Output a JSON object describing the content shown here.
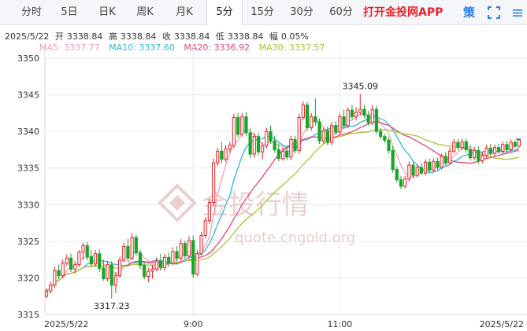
{
  "tabs": [
    {
      "label": "分时",
      "active": false
    },
    {
      "label": "5日",
      "active": false
    },
    {
      "label": "日K",
      "active": false
    },
    {
      "label": "周K",
      "active": false
    },
    {
      "label": "月K",
      "active": false
    },
    {
      "label": "5分",
      "active": true
    },
    {
      "label": "15分",
      "active": false
    },
    {
      "label": "30分",
      "active": false
    },
    {
      "label": "60分",
      "active": false
    }
  ],
  "app_promo": "打开金投网APP",
  "strategy_label": "策",
  "quote": {
    "date": "2025/5/22",
    "open_label": "开",
    "open": "3338.84",
    "high_label": "高",
    "high": "3338.84",
    "close_label": "收",
    "close": "3338.84",
    "low_label": "低",
    "low": "3338.84",
    "change_label": "幅",
    "change": "0.05%"
  },
  "ma": [
    {
      "label": "MA5: 3337.77",
      "color": "#f4a0b4"
    },
    {
      "label": "MA10: 3337.60",
      "color": "#33b7d6"
    },
    {
      "label": "MA20: 3336.92",
      "color": "#e8457c"
    },
    {
      "label": "MA30: 3337.57",
      "color": "#a8c43a"
    }
  ],
  "watermark": {
    "cn": "金投行情",
    "url": "quote.cngold.org"
  },
  "colors": {
    "up": "#e8222a",
    "down": "#19a526",
    "grid": "#e6e9ee"
  },
  "chart_data": {
    "type": "candlestick",
    "ylim": [
      3315,
      3350
    ],
    "y_ticks": [
      3315,
      3320,
      3325,
      3330,
      3335,
      3340,
      3345,
      3350
    ],
    "x_tick_labels": [
      {
        "label": "2025/5/22",
        "index": 0
      },
      {
        "label": "9:00",
        "index": 36
      },
      {
        "label": "11:00",
        "index": 72
      },
      {
        "label": "2025/5/22",
        "index": 116
      }
    ],
    "annotations": [
      {
        "label": "3345.09",
        "index": 77,
        "value": 3345.09
      },
      {
        "label": "3317.23",
        "index": 16,
        "value": 3317.23
      }
    ],
    "last_price": 3338.84,
    "candles": [
      [
        3317.5,
        3318.6,
        3317.2,
        3318.2
      ],
      [
        3318.2,
        3319.5,
        3317.8,
        3319.0
      ],
      [
        3319.0,
        3321.5,
        3318.6,
        3321.0
      ],
      [
        3321.0,
        3321.8,
        3319.8,
        3320.3
      ],
      [
        3320.3,
        3322.5,
        3320.0,
        3322.0
      ],
      [
        3322.0,
        3323.2,
        3321.6,
        3322.7
      ],
      [
        3322.7,
        3323.3,
        3320.8,
        3321.2
      ],
      [
        3321.2,
        3322.3,
        3320.6,
        3321.8
      ],
      [
        3321.8,
        3323.8,
        3321.5,
        3323.5
      ],
      [
        3323.5,
        3324.8,
        3322.5,
        3324.4
      ],
      [
        3324.4,
        3324.9,
        3322.4,
        3322.9
      ],
      [
        3322.9,
        3323.8,
        3321.5,
        3321.9
      ],
      [
        3321.9,
        3323.8,
        3321.5,
        3323.3
      ],
      [
        3323.3,
        3323.9,
        3320.8,
        3321.3
      ],
      [
        3321.3,
        3322.5,
        3319.6,
        3319.9
      ],
      [
        3319.9,
        3322.3,
        3319.5,
        3321.8
      ],
      [
        3321.8,
        3322.3,
        3317.2,
        3319.0
      ],
      [
        3319.0,
        3320.8,
        3317.9,
        3320.3
      ],
      [
        3320.3,
        3322.9,
        3320.0,
        3322.4
      ],
      [
        3322.4,
        3324.8,
        3322.1,
        3324.3
      ],
      [
        3324.3,
        3325.3,
        3322.2,
        3322.7
      ],
      [
        3322.7,
        3326.1,
        3322.4,
        3325.5
      ],
      [
        3325.5,
        3325.9,
        3323.0,
        3323.4
      ],
      [
        3323.4,
        3323.8,
        3321.2,
        3321.7
      ],
      [
        3321.7,
        3322.1,
        3319.8,
        3320.2
      ],
      [
        3320.2,
        3321.4,
        3319.4,
        3320.9
      ],
      [
        3320.9,
        3321.8,
        3319.9,
        3321.2
      ],
      [
        3321.2,
        3322.8,
        3320.9,
        3322.3
      ],
      [
        3322.3,
        3323.3,
        3321.0,
        3321.4
      ],
      [
        3321.4,
        3323.3,
        3321.0,
        3322.8
      ],
      [
        3322.8,
        3323.5,
        3321.5,
        3322.0
      ],
      [
        3322.0,
        3324.2,
        3321.7,
        3323.6
      ],
      [
        3323.6,
        3324.3,
        3322.2,
        3322.7
      ],
      [
        3322.7,
        3325.3,
        3322.3,
        3324.7
      ],
      [
        3324.7,
        3325.1,
        3322.6,
        3323.0
      ],
      [
        3323.0,
        3325.7,
        3322.6,
        3325.1
      ],
      [
        3325.1,
        3325.8,
        3320.0,
        3320.5
      ],
      [
        3320.5,
        3323.8,
        3320.2,
        3323.3
      ],
      [
        3323.3,
        3326.3,
        3323.0,
        3325.8
      ],
      [
        3325.8,
        3328.3,
        3325.4,
        3327.8
      ],
      [
        3327.8,
        3330.8,
        3327.4,
        3330.3
      ],
      [
        3330.3,
        3336.3,
        3329.8,
        3335.7
      ],
      [
        3335.7,
        3337.8,
        3335.3,
        3337.3
      ],
      [
        3337.3,
        3338.5,
        3335.6,
        3336.2
      ],
      [
        3336.2,
        3338.1,
        3335.8,
        3337.6
      ],
      [
        3337.6,
        3338.6,
        3337.1,
        3338.1
      ],
      [
        3338.1,
        3342.4,
        3337.7,
        3341.9
      ],
      [
        3341.9,
        3342.5,
        3339.2,
        3339.6
      ],
      [
        3339.6,
        3342.5,
        3339.3,
        3342.0
      ],
      [
        3342.0,
        3342.6,
        3339.4,
        3339.8
      ],
      [
        3339.8,
        3340.5,
        3336.4,
        3336.9
      ],
      [
        3336.9,
        3339.8,
        3336.4,
        3339.3
      ],
      [
        3339.3,
        3339.8,
        3336.8,
        3337.2
      ],
      [
        3337.2,
        3338.5,
        3336.2,
        3338.0
      ],
      [
        3338.0,
        3340.5,
        3337.7,
        3340.0
      ],
      [
        3340.0,
        3340.8,
        3338.3,
        3338.7
      ],
      [
        3338.7,
        3339.4,
        3337.1,
        3337.5
      ],
      [
        3337.5,
        3338.4,
        3335.9,
        3336.3
      ],
      [
        3336.3,
        3337.8,
        3336.0,
        3337.3
      ],
      [
        3337.3,
        3338.1,
        3336.1,
        3336.5
      ],
      [
        3336.5,
        3339.4,
        3336.1,
        3338.9
      ],
      [
        3338.9,
        3339.4,
        3337.0,
        3337.4
      ],
      [
        3337.4,
        3342.4,
        3337.0,
        3341.9
      ],
      [
        3341.9,
        3344.1,
        3341.5,
        3343.6
      ],
      [
        3343.6,
        3344.0,
        3340.1,
        3340.5
      ],
      [
        3340.5,
        3342.5,
        3340.1,
        3342.0
      ],
      [
        3342.0,
        3344.5,
        3340.8,
        3341.3
      ],
      [
        3341.3,
        3341.8,
        3338.3,
        3338.7
      ],
      [
        3338.7,
        3340.5,
        3338.3,
        3340.1
      ],
      [
        3340.1,
        3340.7,
        3338.1,
        3338.5
      ],
      [
        3338.5,
        3341.3,
        3338.1,
        3340.8
      ],
      [
        3340.8,
        3341.4,
        3339.5,
        3339.9
      ],
      [
        3339.9,
        3342.5,
        3339.5,
        3342.0
      ],
      [
        3342.0,
        3342.9,
        3340.4,
        3340.8
      ],
      [
        3340.8,
        3343.3,
        3340.4,
        3342.9
      ],
      [
        3342.9,
        3343.6,
        3341.6,
        3342.0
      ],
      [
        3342.0,
        3343.3,
        3341.5,
        3342.6
      ],
      [
        3342.6,
        3345.09,
        3342.2,
        3343.0
      ],
      [
        3343.0,
        3343.6,
        3341.8,
        3342.2
      ],
      [
        3342.2,
        3342.8,
        3340.8,
        3341.2
      ],
      [
        3341.2,
        3343.6,
        3340.9,
        3343.0
      ],
      [
        3343.0,
        3343.5,
        3339.6,
        3340.0
      ],
      [
        3340.0,
        3340.5,
        3338.9,
        3339.3
      ],
      [
        3339.3,
        3339.7,
        3338.4,
        3338.8
      ],
      [
        3338.8,
        3339.2,
        3337.0,
        3337.4
      ],
      [
        3337.4,
        3338.0,
        3334.4,
        3334.8
      ],
      [
        3334.8,
        3335.2,
        3333.0,
        3333.4
      ],
      [
        3333.4,
        3333.9,
        3332.1,
        3332.5
      ],
      [
        3332.5,
        3333.9,
        3332.2,
        3333.5
      ],
      [
        3333.5,
        3335.9,
        3333.1,
        3335.4
      ],
      [
        3335.4,
        3336.0,
        3333.6,
        3334.0
      ],
      [
        3334.0,
        3335.5,
        3333.7,
        3335.1
      ],
      [
        3335.1,
        3335.7,
        3334.0,
        3334.3
      ],
      [
        3334.3,
        3336.2,
        3334.0,
        3335.8
      ],
      [
        3335.8,
        3336.3,
        3334.3,
        3334.7
      ],
      [
        3334.7,
        3336.3,
        3334.4,
        3335.9
      ],
      [
        3335.9,
        3336.4,
        3334.7,
        3335.1
      ],
      [
        3335.1,
        3337.0,
        3334.8,
        3336.6
      ],
      [
        3336.6,
        3337.2,
        3335.3,
        3335.7
      ],
      [
        3335.7,
        3337.8,
        3335.4,
        3337.3
      ],
      [
        3337.3,
        3339.0,
        3337.0,
        3338.5
      ],
      [
        3338.5,
        3339.0,
        3337.4,
        3337.8
      ],
      [
        3337.8,
        3339.0,
        3337.5,
        3338.6
      ],
      [
        3338.6,
        3339.0,
        3337.1,
        3337.5
      ],
      [
        3337.5,
        3338.2,
        3336.0,
        3336.4
      ],
      [
        3336.4,
        3337.9,
        3336.1,
        3337.4
      ],
      [
        3337.4,
        3338.0,
        3335.6,
        3336.0
      ],
      [
        3336.0,
        3337.2,
        3335.7,
        3336.7
      ],
      [
        3336.7,
        3338.2,
        3336.3,
        3337.7
      ],
      [
        3337.7,
        3338.3,
        3336.6,
        3337.0
      ],
      [
        3337.0,
        3338.2,
        3336.6,
        3337.8
      ],
      [
        3337.8,
        3338.3,
        3336.9,
        3337.3
      ],
      [
        3337.3,
        3338.6,
        3337.0,
        3338.2
      ],
      [
        3338.2,
        3338.7,
        3337.1,
        3337.5
      ],
      [
        3337.5,
        3338.9,
        3337.2,
        3338.5
      ],
      [
        3338.5,
        3338.84,
        3337.8,
        3338.0
      ],
      [
        3338.0,
        3338.84,
        3337.8,
        3338.84
      ]
    ]
  }
}
